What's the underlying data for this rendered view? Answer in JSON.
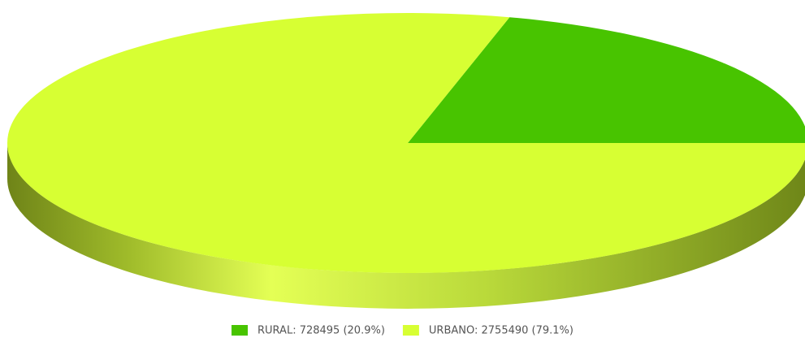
{
  "chart_data": {
    "type": "pie3d",
    "categories": [
      "RURAL",
      "URBANO"
    ],
    "values": [
      728495,
      2755490
    ],
    "value_labels": [
      "RURAL: 728495 (20.9%)",
      "URBANO: 2755490 (79.1%)"
    ],
    "colors": [
      "#48c400",
      "#d7ff33"
    ]
  }
}
